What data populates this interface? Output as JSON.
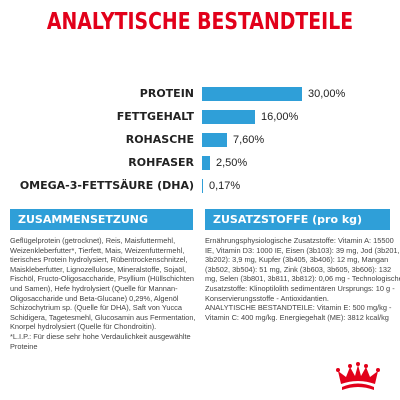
{
  "title": "ANALYTISCHE BESTANDTEILE",
  "analysis": [
    {
      "label": "PROTEIN",
      "value": "30,00%",
      "percent": 30.0
    },
    {
      "label": "FETTGEHALT",
      "value": "16,00%",
      "percent": 16.0
    },
    {
      "label": "ROHASCHE",
      "value": "7,60%",
      "percent": 7.6
    },
    {
      "label": "ROHFASER",
      "value": "2,50%",
      "percent": 2.5
    },
    {
      "label": "OMEGA-3-FETTSÄURE (DHA)",
      "value": "0,17%",
      "percent": 0.17
    }
  ],
  "composition": {
    "heading": "ZUSAMMENSETZUNG",
    "lines": [
      "Geflügelprotein (getrocknet), Reis, Maisfuttermehl,",
      "Weizenkleberfutter*, Tierfett, Mais, Weizenfuttermehl,",
      "tierisches Protein hydrolysiert, Rübentrockenschnitzel,",
      "Maiskleberfutter, Lignozellulose, Mineralstoffe, Sojaöl,",
      "Fischöl, Fructo-Oligosaccharide, Psyllium (Hüllschichten",
      "und Samen), Hefe hydrolysiert (Quelle für Mannan-",
      "Oligosaccharide und Beta-Glucane) 0,29%, Algenöl",
      "Schizochytrium sp. (Quelle für DHA), Saft von Yucca",
      "Schidigera, Tagetesmehl, Glucosamin aus Fermentation,",
      "Knorpel hydrolysiert (Quelle für Chondroitin).",
      "*L.I.P.: Für diese sehr hohe Verdaulichkeit ausgewählte",
      "Proteine"
    ]
  },
  "additives": {
    "heading": "ZUSATZSTOFFE (pro kg)",
    "lines": [
      "Ernährungsphysiologische Zusatzstoffe: Vitamin A: 15500",
      "IE, Vitamin D3: 1000 IE, Eisen (3b103): 39 mg, Jod (3b201,",
      "3b202): 3,9 mg, Kupfer (3b405, 3b406): 12 mg, Mangan",
      "(3b502, 3b504): 51 mg, Zink (3b603, 3b605, 3b606): 132",
      "mg, Selen (3b801, 3b811, 3b812): 0,06 mg - Technologische",
      "Zusatzstoffe: Klinoptilolith sedimentären Ursprungs: 10 g -",
      "Konservierungsstoffe - Antioxidantien.",
      "ANALYTISCHE BESTANDTEILE: Vitamin E: 500 mg/kg -",
      "Vitamin C: 400 mg/kg. Energiegehalt (ME): 3812 kcal/kg"
    ]
  },
  "colors": {
    "title": "#e2001a",
    "bar": "#2f9fd8",
    "logo": "#e2001a"
  },
  "logo": {
    "icon": "royal-canin-crown-logo"
  }
}
